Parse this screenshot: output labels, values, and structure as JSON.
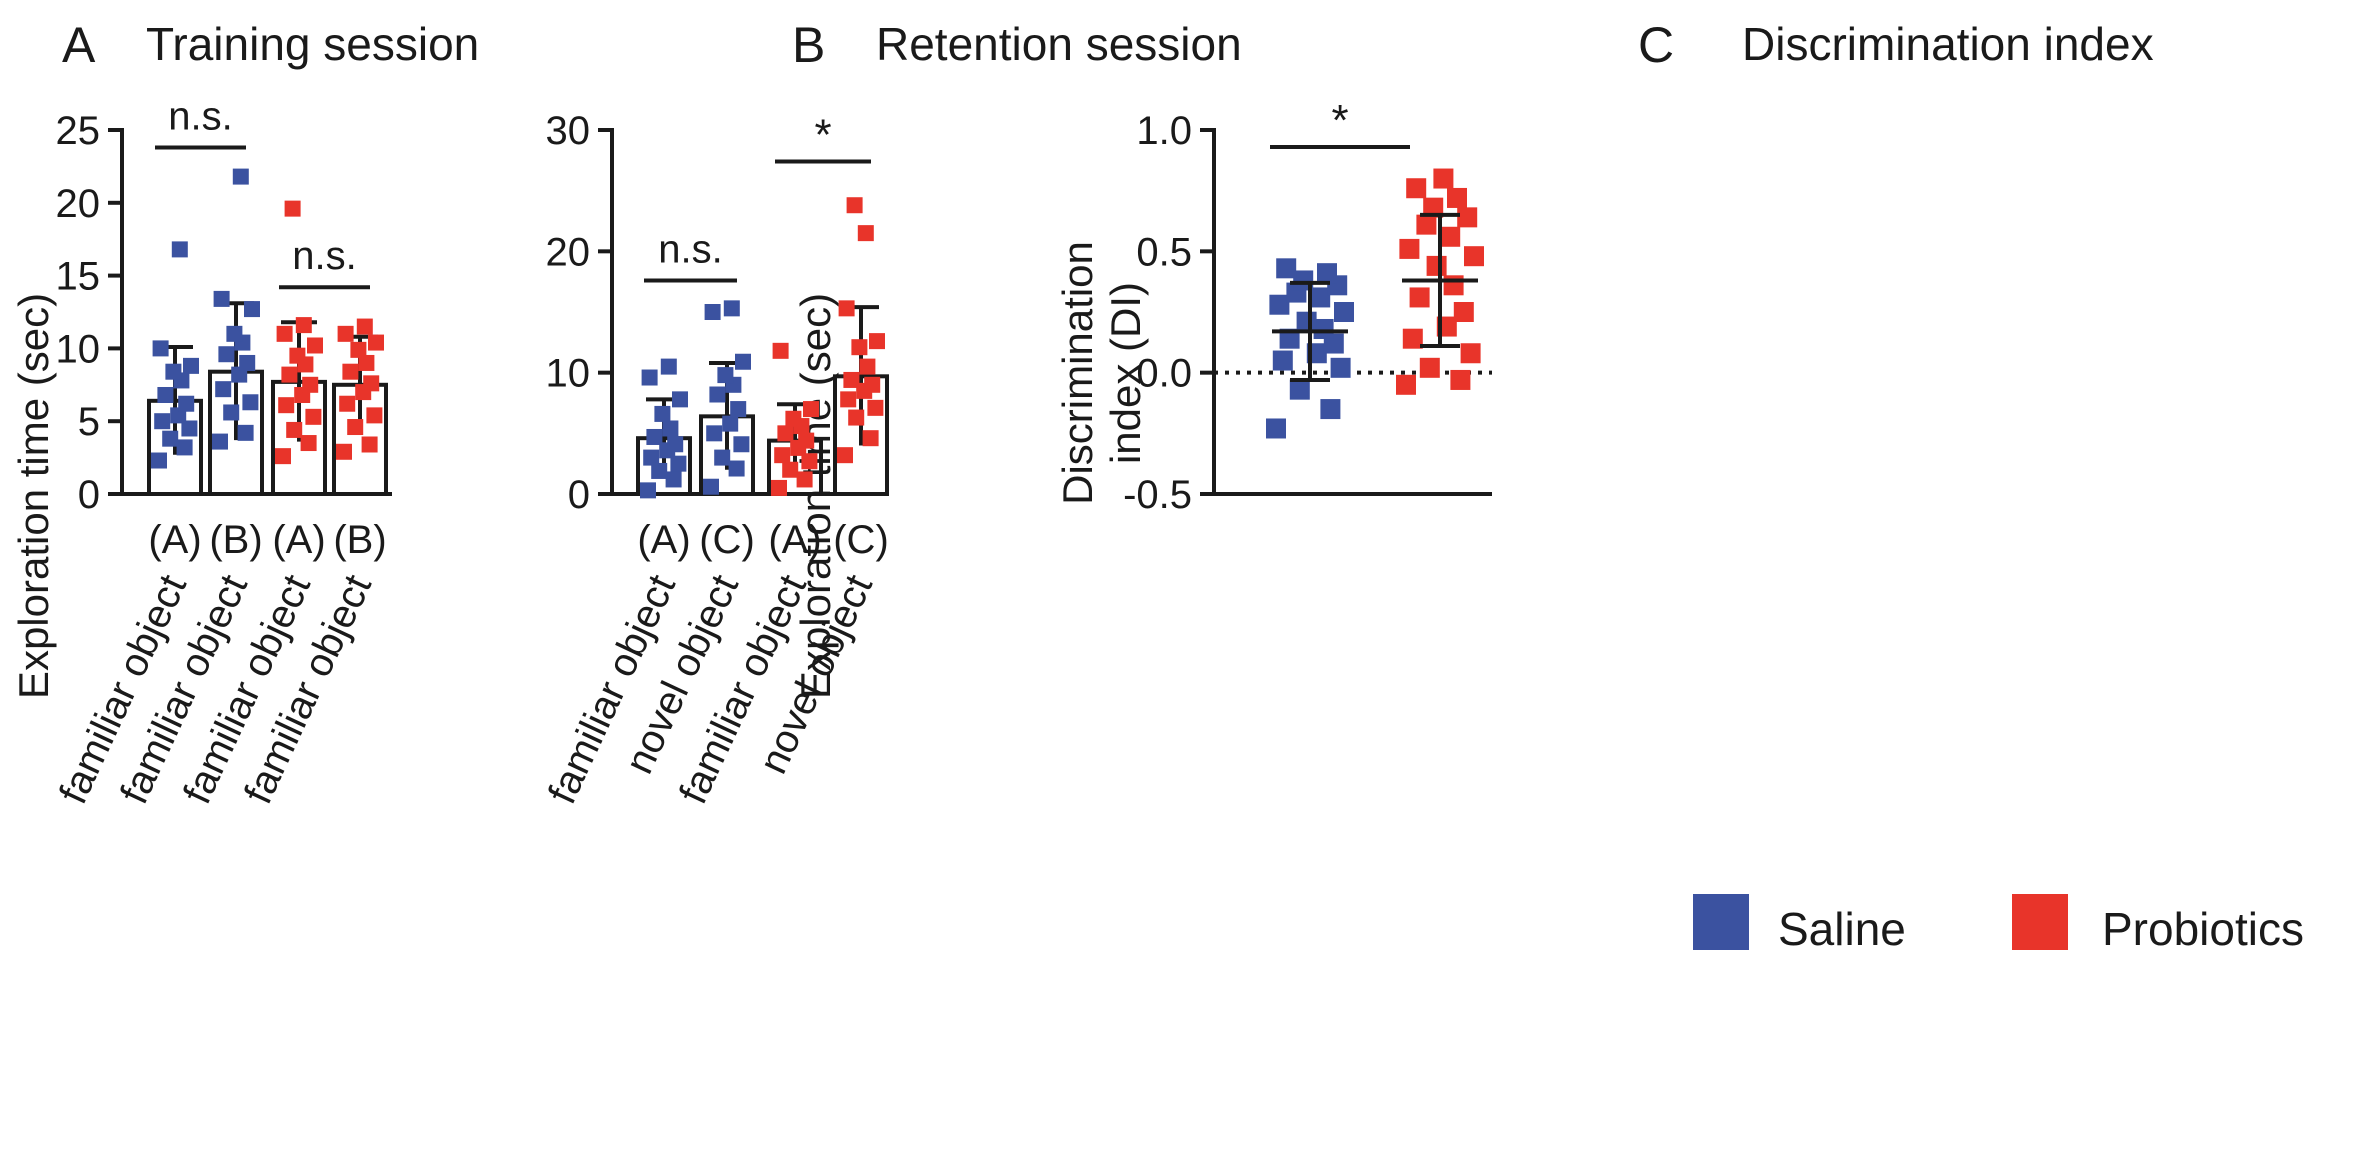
{
  "colors": {
    "saline": "#3b52a0",
    "probiotics": "#e8342a",
    "axis": "#1a1a1a"
  },
  "chart_data": [
    {
      "panel_letter": "A",
      "title": "Training session",
      "type": "bar",
      "ylabel": "Exploration time (sec)",
      "ylim": [
        0,
        25
      ],
      "yticks": [
        "0",
        "5",
        "10",
        "15",
        "20",
        "25"
      ],
      "ytick_values": [
        0,
        5,
        10,
        15,
        20,
        25
      ],
      "categories": [
        {
          "code": "(A)",
          "label": "familiar object",
          "group": "saline"
        },
        {
          "code": "(B)",
          "label": "familiar object",
          "group": "saline"
        },
        {
          "code": "(A)",
          "label": "familiar object",
          "group": "probiotics"
        },
        {
          "code": "(B)",
          "label": "familiar object",
          "group": "probiotics"
        }
      ],
      "means": [
        6.4,
        8.4,
        7.7,
        7.5
      ],
      "sd": [
        3.7,
        4.7,
        4.1,
        3.3
      ],
      "points": [
        [
          2.3,
          3.2,
          3.8,
          4.5,
          5.0,
          5.4,
          6.2,
          6.8,
          7.8,
          8.4,
          8.8,
          10.0,
          16.8
        ],
        [
          3.6,
          4.2,
          5.6,
          6.3,
          7.2,
          8.2,
          9.0,
          9.6,
          10.4,
          11.0,
          12.7,
          13.4,
          21.8
        ],
        [
          2.6,
          3.5,
          4.4,
          5.3,
          6.1,
          6.8,
          7.5,
          8.2,
          8.9,
          9.5,
          10.2,
          11.0,
          11.6,
          19.6
        ],
        [
          2.9,
          3.4,
          4.6,
          5.4,
          6.2,
          7.0,
          7.6,
          8.4,
          9.0,
          9.9,
          10.4,
          11.0,
          11.5
        ]
      ],
      "annotations": [
        {
          "text": "n.s.",
          "from": 0,
          "to": 1,
          "y": 23.8
        },
        {
          "text": "n.s.",
          "from": 2,
          "to": 3,
          "y": 14.2
        }
      ]
    },
    {
      "panel_letter": "B",
      "title": "Retention session",
      "type": "bar",
      "ylabel": "Exploration time (sec)",
      "ylim": [
        0,
        30
      ],
      "yticks": [
        "0",
        "10",
        "20",
        "30"
      ],
      "ytick_values": [
        0,
        10,
        20,
        30
      ],
      "categories": [
        {
          "code": "(A)",
          "label": "familiar object",
          "group": "saline"
        },
        {
          "code": "(C)",
          "label": "novel object",
          "group": "saline"
        },
        {
          "code": "(A)",
          "label": "familiar object",
          "group": "probiotics"
        },
        {
          "code": "(C)",
          "label": "novel object",
          "group": "probiotics"
        }
      ],
      "means": [
        4.6,
        6.4,
        4.4,
        9.7
      ],
      "sd": [
        3.2,
        4.4,
        3.0,
        5.7
      ],
      "points": [
        [
          0.3,
          1.2,
          1.9,
          2.5,
          3.0,
          3.6,
          4.1,
          4.7,
          5.4,
          6.6,
          7.8,
          9.6,
          10.5
        ],
        [
          0.6,
          2.1,
          3.0,
          4.1,
          5.0,
          5.8,
          7.0,
          8.2,
          9.0,
          9.8,
          10.9,
          15.0,
          15.3
        ],
        [
          0.5,
          1.2,
          2.0,
          2.7,
          3.2,
          3.8,
          4.4,
          5.0,
          5.6,
          6.2,
          7.0,
          11.8
        ],
        [
          3.2,
          4.6,
          6.3,
          7.1,
          7.8,
          8.5,
          9.0,
          9.4,
          10.5,
          12.1,
          12.6,
          15.3,
          21.5,
          23.8
        ]
      ],
      "annotations": [
        {
          "text": "n.s.",
          "from": 0,
          "to": 1,
          "y": 17.6
        },
        {
          "text": "*",
          "from": 2,
          "to": 3,
          "y": 27.4
        }
      ]
    },
    {
      "panel_letter": "C",
      "title": "Discrimination index",
      "type": "scatter",
      "ylabel": "Discrimination index (DI)",
      "ylim": [
        -0.5,
        1.0
      ],
      "yticks": [
        "-0.5",
        "0.0",
        "0.5",
        "1.0"
      ],
      "ytick_values": [
        -0.5,
        0.0,
        0.5,
        1.0
      ],
      "reference_line": 0.0,
      "groups": [
        {
          "group": "saline",
          "mean": 0.17,
          "sd": 0.2,
          "points": [
            -0.23,
            -0.15,
            -0.07,
            0.02,
            0.05,
            0.08,
            0.12,
            0.14,
            0.18,
            0.21,
            0.25,
            0.28,
            0.31,
            0.33,
            0.36,
            0.38,
            0.41,
            0.43
          ]
        },
        {
          "group": "probiotics",
          "mean": 0.38,
          "sd": 0.27,
          "points": [
            -0.05,
            -0.03,
            0.02,
            0.08,
            0.14,
            0.19,
            0.25,
            0.31,
            0.36,
            0.44,
            0.48,
            0.51,
            0.56,
            0.61,
            0.64,
            0.68,
            0.72,
            0.76,
            0.8
          ]
        }
      ],
      "annotations": [
        {
          "text": "*",
          "from": 0,
          "to": 1,
          "y": 0.93
        }
      ]
    }
  ],
  "legend": {
    "items": [
      {
        "key": "saline",
        "label": "Saline"
      },
      {
        "key": "probiotics",
        "label": "Probiotics"
      }
    ]
  }
}
